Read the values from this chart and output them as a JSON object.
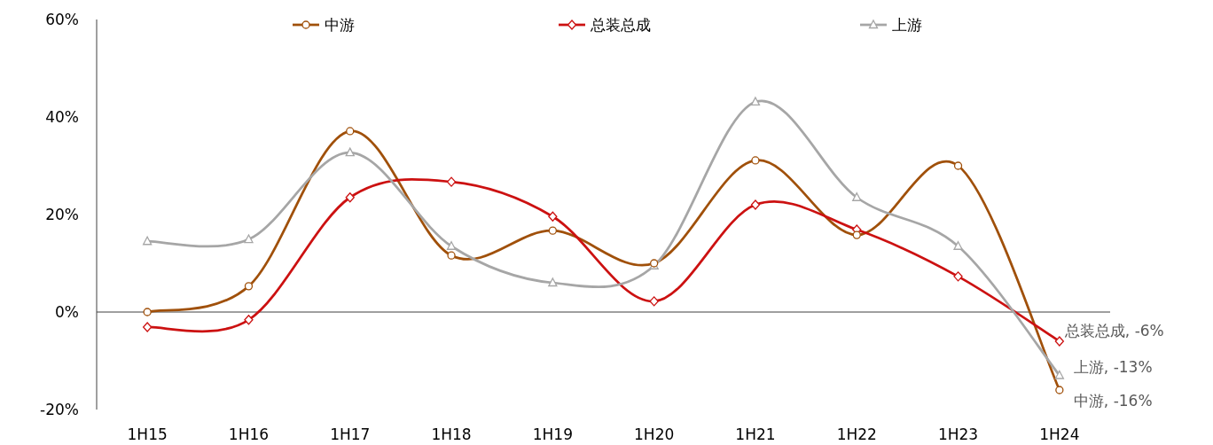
{
  "chart_data": {
    "type": "line",
    "categories": [
      "1H15",
      "1H16",
      "1H17",
      "1H18",
      "1H19",
      "1H20",
      "1H21",
      "1H22",
      "1H23",
      "1H24"
    ],
    "series": [
      {
        "name": "中游",
        "color": "#a0500a",
        "marker": "circle",
        "values": [
          0,
          5.3,
          37.1,
          11.6,
          16.7,
          10.0,
          31.1,
          15.8,
          30.0,
          -16
        ]
      },
      {
        "name": "总装总成",
        "color": "#cc1111",
        "marker": "diamond",
        "values": [
          -3.1,
          -1.6,
          23.5,
          26.7,
          19.6,
          2.2,
          22.0,
          16.9,
          7.3,
          -6
        ]
      },
      {
        "name": "上游",
        "color": "#a6a6a6",
        "marker": "triangle",
        "values": [
          14.5,
          14.9,
          32.7,
          13.5,
          6.0,
          9.5,
          43.1,
          23.5,
          13.5,
          -13
        ]
      }
    ],
    "ylim": [
      -20,
      60
    ],
    "yticks": [
      {
        "value": -20,
        "label": "-20%"
      },
      {
        "value": 0,
        "label": "0%"
      },
      {
        "value": 20,
        "label": "20%"
      },
      {
        "value": 40,
        "label": "40%"
      },
      {
        "value": 60,
        "label": "60%"
      }
    ],
    "ref_lines": [
      {
        "axis": "y",
        "value": 0,
        "color": "#404040"
      }
    ],
    "legend": "top",
    "annotations": [
      {
        "text": "总装总成, -6%",
        "x": "1H24",
        "y": -6
      },
      {
        "text": "上游, -13%",
        "x": "1H24",
        "y": -13
      },
      {
        "text": "中游, -16%",
        "x": "1H24",
        "y": -16
      }
    ]
  }
}
